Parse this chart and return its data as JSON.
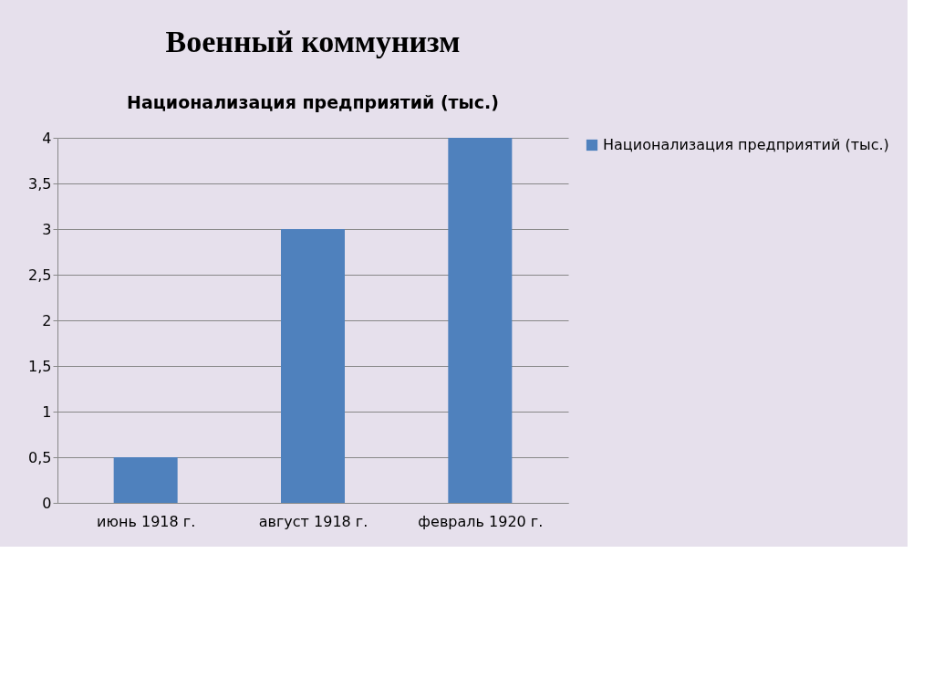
{
  "chart_data": {
    "type": "bar",
    "title": "Военный коммунизм",
    "subtitle": "Национализация предприятий (тыс.)",
    "categories": [
      "июнь 1918 г.",
      "август 1918 г.",
      "февраль 1920 г."
    ],
    "series": [
      {
        "name": "Национализация предприятий (тыс.)",
        "color": "#4f81bd",
        "values": [
          0.5,
          3,
          4
        ]
      }
    ],
    "ylim": [
      0,
      4
    ],
    "yticks": [
      0,
      {
        "value": 0.5,
        "label": "0,5"
      },
      1,
      {
        "value": 1.5,
        "label": "1,5"
      },
      2,
      {
        "value": 2.5,
        "label": "2,5"
      },
      3,
      {
        "value": 3.5,
        "label": "3,5"
      },
      4
    ],
    "grid": "y",
    "legend": "right"
  }
}
